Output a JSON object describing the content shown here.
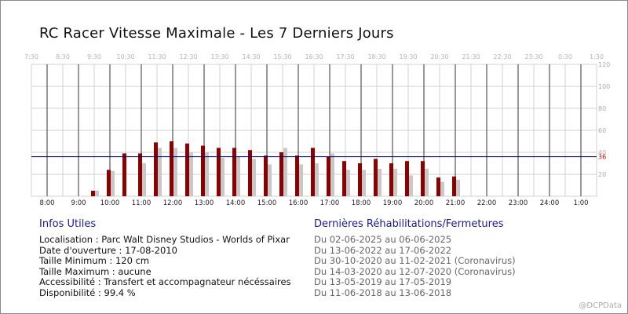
{
  "title": "RC Racer Vitesse Maximale - Les 7 Derniers Jours",
  "chart_data": {
    "type": "bar",
    "top_axis_labels": [
      "7:30",
      "8:30",
      "9:30",
      "10:30",
      "11:30",
      "12:30",
      "13:30",
      "14:30",
      "15:30",
      "16:30",
      "17:30",
      "18:30",
      "19:30",
      "20:30",
      "21:30",
      "22:30",
      "23:30",
      "0:30",
      "1:30"
    ],
    "bottom_axis_labels": [
      "8:00",
      "9:00",
      "10:00",
      "11:00",
      "12:00",
      "13:00",
      "14:00",
      "15:00",
      "16:00",
      "17:00",
      "18:00",
      "19:00",
      "20:00",
      "21:00",
      "22:00",
      "23:00",
      "24:00",
      "1:00"
    ],
    "y_ticks": [
      20,
      40,
      60,
      80,
      100,
      120
    ],
    "ylim": [
      0,
      120
    ],
    "reference_line": {
      "value": 36,
      "label": "36"
    },
    "series": [
      {
        "color": "#8b0000",
        "x": [
          "9:30",
          "10:00",
          "10:30",
          "11:00",
          "11:30",
          "12:00",
          "12:30",
          "13:00",
          "13:30",
          "14:00",
          "14:30",
          "15:00",
          "15:30",
          "16:00",
          "16:30",
          "17:00",
          "17:30",
          "18:00",
          "18:30",
          "19:00",
          "19:30",
          "20:00",
          "20:30",
          "21:00"
        ],
        "values": [
          5,
          24,
          39,
          39,
          49,
          50,
          48,
          46,
          44,
          44,
          42,
          37,
          40,
          37,
          44,
          36,
          32,
          30,
          34,
          30,
          32,
          32,
          17,
          18
        ]
      },
      {
        "color": "#c8c8c8",
        "x": [
          "9:30",
          "10:00",
          "10:30",
          "11:00",
          "11:30",
          "12:00",
          "12:30",
          "13:00",
          "13:30",
          "14:00",
          "14:30",
          "15:00",
          "15:30",
          "16:00",
          "16:30",
          "17:00",
          "17:30",
          "18:00",
          "18:30",
          "19:00",
          "19:30",
          "20:00",
          "20:30",
          "21:00"
        ],
        "values": [
          5,
          23,
          0,
          30,
          44,
          44,
          40,
          40,
          35,
          36,
          34,
          29,
          44,
          29,
          30,
          39,
          24,
          24,
          25,
          25,
          19,
          25,
          13,
          15
        ]
      }
    ],
    "colors": {
      "grid_light": "#d0d0d0",
      "grid_dark": "#333333",
      "reference": "#00007a",
      "reference_label": "#cc0000"
    }
  },
  "infos": {
    "heading": "Infos Utiles",
    "lines": [
      "Localisation : Parc Walt Disney Studios - Worlds of Pixar",
      "Date d'ouverture : 17-08-2010",
      "Taille Minimum : 120 cm",
      "Taille Maximum : aucune",
      "Accessibilité : Transfert et accompagnateur nécéssaires",
      "Disponibilité : 99.4 %"
    ]
  },
  "rehab": {
    "heading": "Dernières Réhabilitations/Fermetures",
    "lines": [
      "Du 02-06-2025 au 06-06-2025",
      "Du 13-06-2022 au 17-06-2022",
      "Du 30-10-2020 au 11-02-2021 (Coronavirus)",
      "Du 14-03-2020 au 12-07-2020 (Coronavirus)",
      "Du 13-05-2019 au 17-05-2019",
      "Du 11-06-2018 au 13-06-2018"
    ]
  },
  "credit": "@DCPData"
}
